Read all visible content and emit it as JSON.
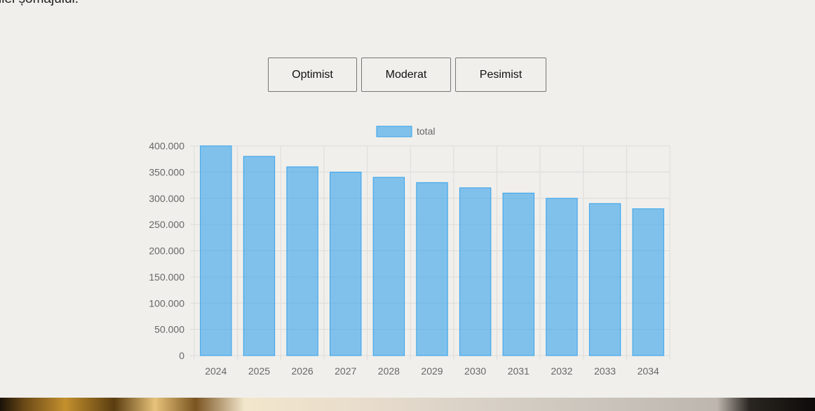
{
  "intro": {
    "text": "ilei șomajului."
  },
  "scenarios": {
    "optimist": "Optimist",
    "moderat": "Moderat",
    "pesimist": "Pesimist"
  },
  "colors": {
    "bar_fill": "rgba(54,162,235,0.6)",
    "bar_border": "#36a2eb",
    "grid": "#dcdcda",
    "tick_text": "#666666"
  },
  "chart_data": {
    "type": "bar",
    "categories": [
      "2024",
      "2025",
      "2026",
      "2027",
      "2028",
      "2029",
      "2030",
      "2031",
      "2032",
      "2033",
      "2034"
    ],
    "series": [
      {
        "name": "total",
        "values": [
          400000,
          380000,
          360000,
          350000,
          340000,
          330000,
          320000,
          310000,
          300000,
          290000,
          280000
        ]
      }
    ],
    "yticks": [
      "0",
      "50.000",
      "100.000",
      "150.000",
      "200.000",
      "250.000",
      "300.000",
      "350.000",
      "400.000"
    ],
    "ylim": [
      0,
      400000
    ],
    "legend": "top-center",
    "grid": true
  }
}
